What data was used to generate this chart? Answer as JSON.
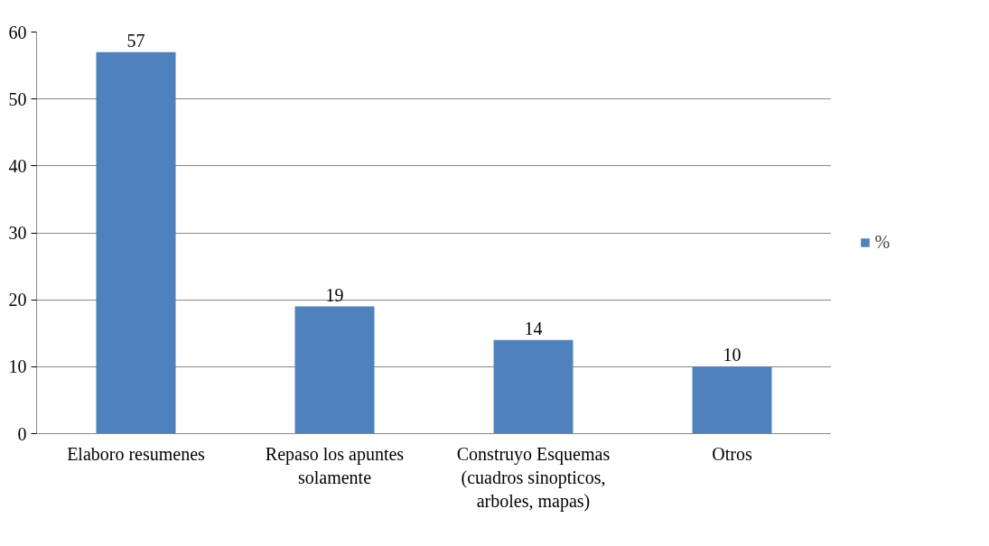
{
  "chart_data": {
    "type": "bar",
    "categories": [
      "Elaboro resumenes",
      "Repaso los apuntes solamente",
      "Construyo Esquemas (cuadros sinopticos, arboles, mapas)",
      "Otros"
    ],
    "series": [
      {
        "name": "%",
        "color": "#4f81bd",
        "values": [
          57,
          19,
          14,
          10
        ]
      }
    ],
    "ylim": [
      0,
      60
    ],
    "yticks": [
      0,
      10,
      20,
      30,
      40,
      50,
      60
    ],
    "grid": "y",
    "legend": "right",
    "data_labels": true
  }
}
